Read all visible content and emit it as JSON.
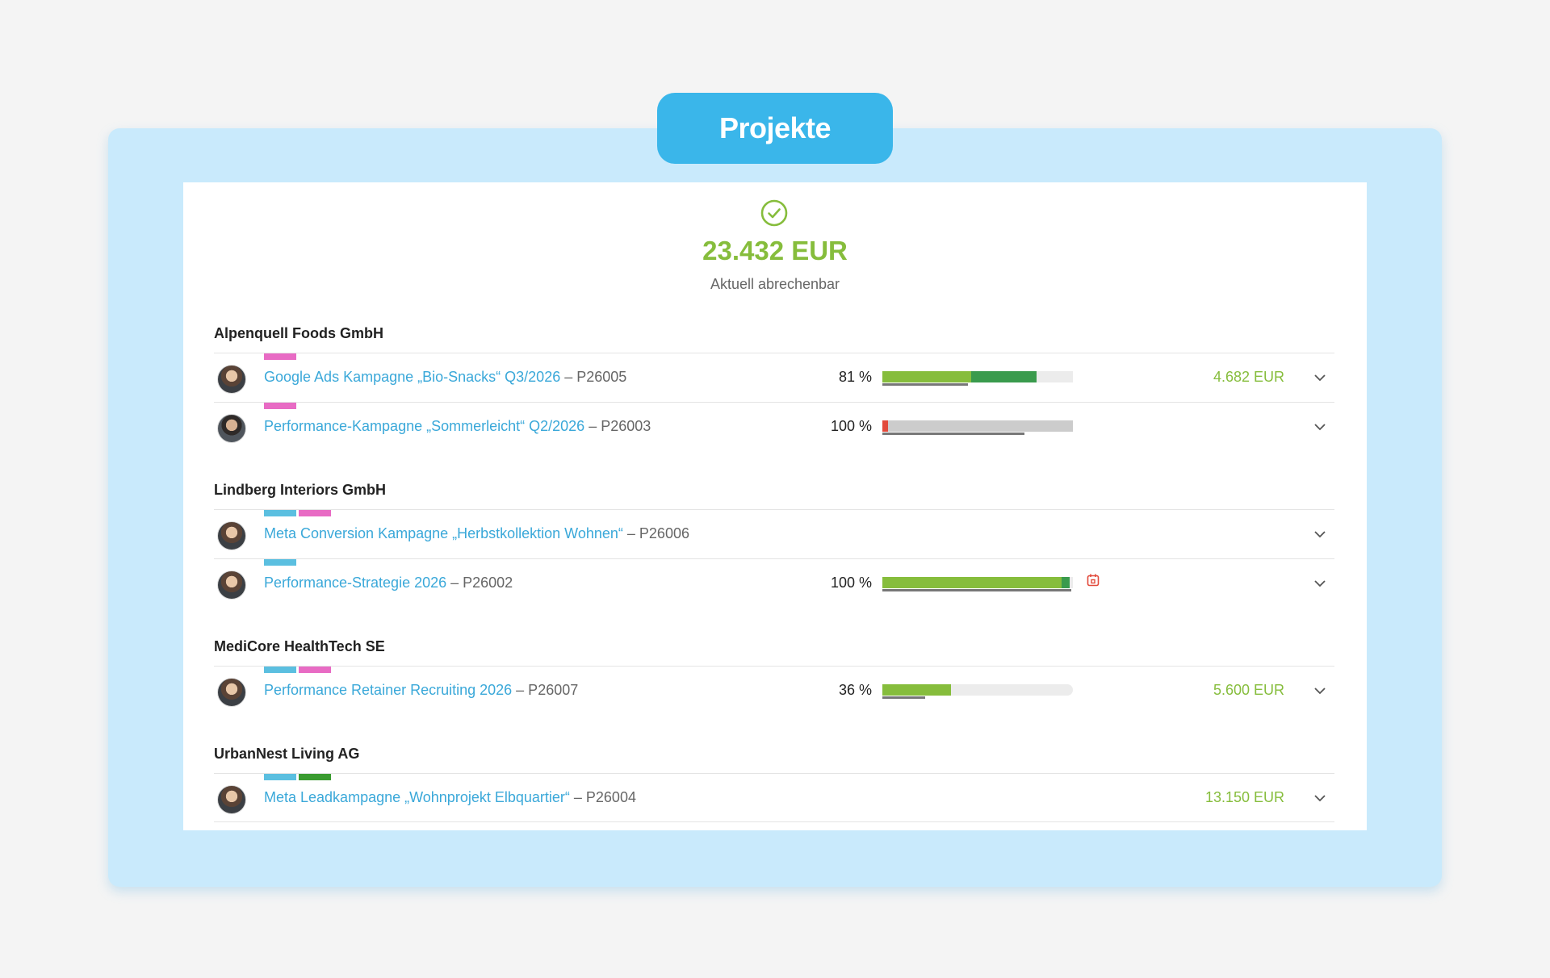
{
  "header": {
    "title": "Projekte"
  },
  "summary": {
    "total": "23.432 EUR",
    "label": "Aktuell abrechenbar",
    "icon": "check-circle-icon"
  },
  "colors": {
    "accent": "#3ab6ea",
    "success": "#86bd3c",
    "tag_pink": "#e86bc4",
    "tag_blue": "#5bbfe0",
    "tag_green": "#3a9b30",
    "bar_green_light": "#86bd3c",
    "bar_green_dark": "#3a9b4d",
    "bar_red": "#e24a3b",
    "bar_grey": "#cccccc"
  },
  "clients": [
    {
      "name": "Alpenquell Foods GmbH",
      "projects": [
        {
          "name": "Google Ads Kampagne „Bio-Snacks“ Q3/2026",
          "code": " – P26005",
          "percent": "81 %",
          "progress": 0.81,
          "amount": "4.682 EUR",
          "tags": [
            "pink"
          ]
        },
        {
          "name": "Performance-Kampagne „Sommerleicht“ Q2/2026",
          "code": " – P26003",
          "percent": "100 %",
          "progress": 1.0,
          "amount": "",
          "tags": [
            "pink"
          ]
        }
      ]
    },
    {
      "name": "Lindberg Interiors GmbH",
      "projects": [
        {
          "name": "Meta Conversion Kampagne „Herbstkollektion Wohnen“",
          "code": " – P26006",
          "percent": "",
          "amount": "",
          "tags": [
            "blue",
            "pink"
          ]
        },
        {
          "name": "Performance-Strategie 2026",
          "code": " – P26002",
          "percent": "100 %",
          "progress": 1.0,
          "amount": "",
          "alert_icon": "calendar-alert-icon",
          "tags": [
            "blue"
          ]
        }
      ]
    },
    {
      "name": "MediCore HealthTech SE",
      "projects": [
        {
          "name": "Performance Retainer Recruiting 2026",
          "code": " – P26007",
          "percent": "36 %",
          "progress": 0.36,
          "amount": "5.600 EUR",
          "tags": [
            "blue",
            "pink"
          ]
        }
      ]
    },
    {
      "name": "UrbanNest Living AG",
      "projects": [
        {
          "name": "Meta Leadkampagne „Wohnprojekt Elbquartier“",
          "code": " – P26004",
          "percent": "",
          "amount": "13.150 EUR",
          "tags": [
            "blue",
            "green"
          ]
        }
      ]
    }
  ]
}
